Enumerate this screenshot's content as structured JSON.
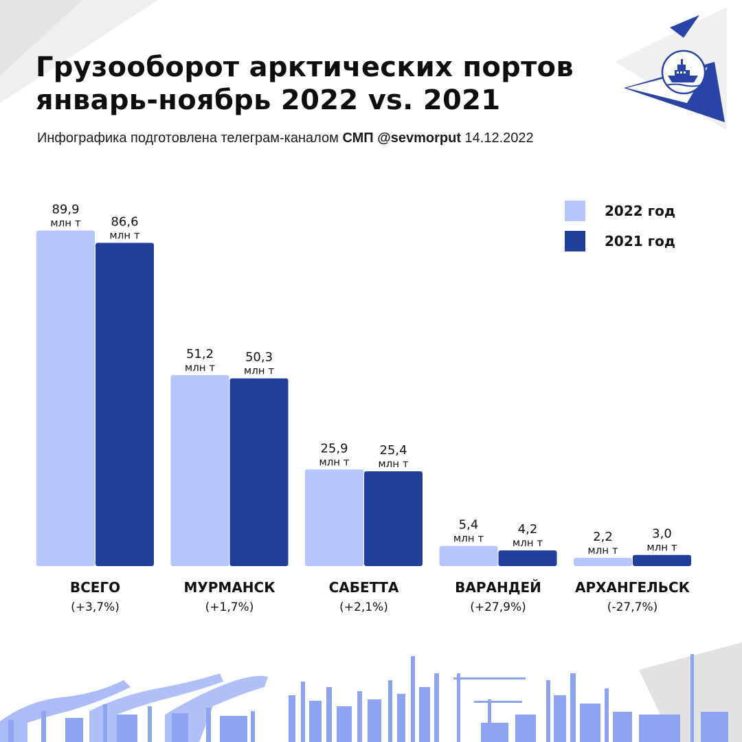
{
  "header": {
    "title_line1": "Грузооборот арктических портов",
    "title_line2": "январь-ноябрь 2022 vs. 2021",
    "subtitle_prefix": "Инфографика подготовлена телеграм-каналом ",
    "subtitle_channel": "СМП @sevmorput",
    "subtitle_date": " 14.12.2022"
  },
  "legend": [
    {
      "label": "2022 год",
      "color": "#b6c6fa"
    },
    {
      "label": "2021 год",
      "color": "#223e9b"
    }
  ],
  "colors": {
    "light_bar": "#b6c6fa",
    "dark_bar": "#223e9b",
    "accent_triangle": "#2a43a6",
    "skyline": "#8ea4f2"
  },
  "logo": {
    "icon": "icebreaker-ship-icon"
  },
  "chart_data": {
    "type": "bar",
    "categories": [
      "ВСЕГО",
      "МУРМАНСК",
      "САБЕТТА",
      "ВАРАНДЕЙ",
      "АРХАНГЕЛЬСК"
    ],
    "category_changes": [
      "(+3,7%)",
      "(+1,7%)",
      "(+2,1%)",
      "(+27,9%)",
      "(-27,7%)"
    ],
    "series": [
      {
        "name": "2022 год",
        "values": [
          89.9,
          51.2,
          25.9,
          5.4,
          2.2
        ],
        "labels": [
          "89,9",
          "51,2",
          "25,9",
          "5,4",
          "2,2"
        ]
      },
      {
        "name": "2021 год",
        "values": [
          86.6,
          50.3,
          25.4,
          4.2,
          3.0
        ],
        "labels": [
          "86,6",
          "50,3",
          "25,4",
          "4,2",
          "3,0"
        ]
      }
    ],
    "unit": "млн т",
    "ylim": [
      0,
      90
    ],
    "grid": false,
    "legend_position": "top-right"
  }
}
